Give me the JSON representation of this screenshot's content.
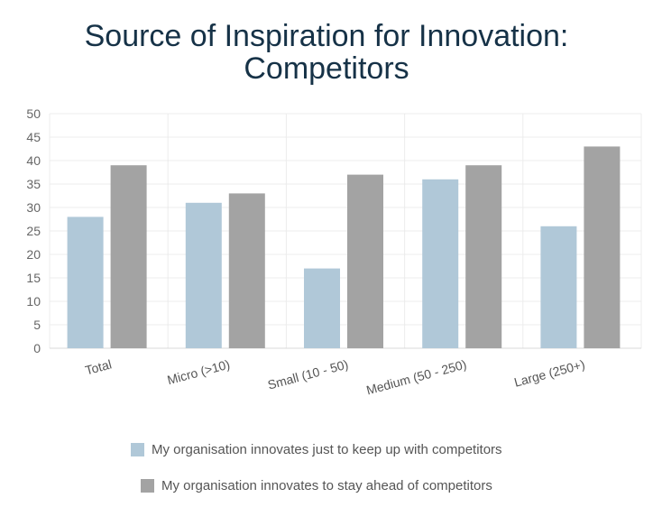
{
  "chart_data": {
    "type": "bar",
    "title_line1": "Source of Inspiration for Innovation:",
    "title_line2": "Competitors",
    "categories": [
      "Total",
      "Micro (>10)",
      "Small (10 - 50)",
      "Medium (50 - 250)",
      "Large (250+)"
    ],
    "series": [
      {
        "name": "My organisation innovates just to keep up with competitors",
        "values": [
          28,
          31,
          17,
          36,
          26
        ],
        "color": "#b0c8d8"
      },
      {
        "name": "My organisation innovates to stay ahead of competitors",
        "values": [
          39,
          33,
          37,
          39,
          43
        ],
        "color": "#a3a3a3"
      }
    ],
    "ylim": [
      0,
      50
    ],
    "yticks": [
      0,
      5,
      10,
      15,
      20,
      25,
      30,
      35,
      40,
      45,
      50
    ],
    "grid": true,
    "legend_position": "bottom"
  }
}
